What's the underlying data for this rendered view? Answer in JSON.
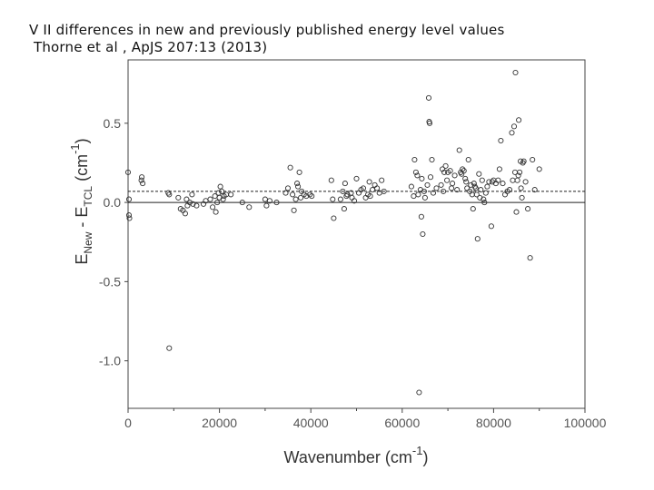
{
  "title_lines": [
    "V II differences in new and previously published energy level values",
    " Thorne et al , ApJS 207:13 (2013)"
  ],
  "chart_data": {
    "type": "scatter",
    "xlabel": "Wavenumber (cm-1)",
    "ylabel": "E_New - E_TCL (cm-1)",
    "xlim": [
      0,
      100000
    ],
    "ylim": [
      -1.3,
      0.9
    ],
    "xticks": [
      0,
      20000,
      40000,
      60000,
      80000,
      100000
    ],
    "yticks": [
      0.5,
      0.0,
      -0.5,
      -1.0
    ],
    "ytick_labels": [
      "0.5",
      "0.0",
      "-0.5",
      "-1.0"
    ],
    "reference_lines": [
      {
        "y": 0.0,
        "style": "solid"
      },
      {
        "y": 0.07,
        "style": "dashed"
      }
    ],
    "marker": "open-circle",
    "points": [
      [
        0,
        0.19
      ],
      [
        200,
        0.02
      ],
      [
        200,
        -0.08
      ],
      [
        300,
        -0.1
      ],
      [
        2900,
        0.14
      ],
      [
        3000,
        0.16
      ],
      [
        3200,
        0.12
      ],
      [
        8800,
        0.06
      ],
      [
        9000,
        0.05
      ],
      [
        9000,
        -0.92
      ],
      [
        11000,
        0.03
      ],
      [
        11500,
        -0.04
      ],
      [
        12000,
        -0.05
      ],
      [
        12500,
        -0.07
      ],
      [
        12800,
        0.02
      ],
      [
        13000,
        -0.02
      ],
      [
        13500,
        0.0
      ],
      [
        14000,
        0.05
      ],
      [
        14200,
        -0.01
      ],
      [
        15000,
        -0.02
      ],
      [
        16500,
        -0.01
      ],
      [
        17000,
        0.01
      ],
      [
        18000,
        0.02
      ],
      [
        18500,
        -0.03
      ],
      [
        19000,
        0.04
      ],
      [
        19200,
        -0.06
      ],
      [
        19500,
        0.0
      ],
      [
        19800,
        0.06
      ],
      [
        20000,
        0.03
      ],
      [
        20200,
        0.1
      ],
      [
        20500,
        0.07
      ],
      [
        20800,
        0.02
      ],
      [
        21000,
        0.04
      ],
      [
        21500,
        0.05
      ],
      [
        22500,
        0.05
      ],
      [
        25000,
        0.0
      ],
      [
        26500,
        -0.03
      ],
      [
        30000,
        0.02
      ],
      [
        30300,
        -0.02
      ],
      [
        31000,
        0.01
      ],
      [
        32500,
        0.0
      ],
      [
        34500,
        0.06
      ],
      [
        35000,
        0.09
      ],
      [
        35500,
        0.22
      ],
      [
        36000,
        0.05
      ],
      [
        36300,
        -0.05
      ],
      [
        36700,
        0.02
      ],
      [
        37000,
        0.12
      ],
      [
        37200,
        0.1
      ],
      [
        37500,
        0.19
      ],
      [
        37800,
        0.03
      ],
      [
        38000,
        0.07
      ],
      [
        38500,
        0.05
      ],
      [
        39000,
        0.04
      ],
      [
        39800,
        0.05
      ],
      [
        40200,
        0.04
      ],
      [
        44500,
        0.14
      ],
      [
        44800,
        0.02
      ],
      [
        45000,
        -0.1
      ],
      [
        46500,
        0.02
      ],
      [
        47000,
        0.07
      ],
      [
        47300,
        -0.04
      ],
      [
        47500,
        0.12
      ],
      [
        47800,
        0.04
      ],
      [
        48000,
        0.05
      ],
      [
        48800,
        0.06
      ],
      [
        49000,
        0.03
      ],
      [
        49500,
        0.01
      ],
      [
        50000,
        0.15
      ],
      [
        50500,
        0.06
      ],
      [
        51000,
        0.08
      ],
      [
        51500,
        0.09
      ],
      [
        52000,
        0.03
      ],
      [
        52500,
        0.05
      ],
      [
        52800,
        0.13
      ],
      [
        53000,
        0.04
      ],
      [
        53500,
        0.08
      ],
      [
        54000,
        0.11
      ],
      [
        54500,
        0.09
      ],
      [
        55000,
        0.06
      ],
      [
        55500,
        0.14
      ],
      [
        56000,
        0.07
      ],
      [
        62000,
        0.1
      ],
      [
        62500,
        0.04
      ],
      [
        62700,
        0.27
      ],
      [
        63000,
        0.19
      ],
      [
        63300,
        0.17
      ],
      [
        63500,
        0.05
      ],
      [
        63700,
        -1.2
      ],
      [
        64000,
        0.08
      ],
      [
        64200,
        -0.09
      ],
      [
        64300,
        0.15
      ],
      [
        64500,
        -0.2
      ],
      [
        64800,
        0.07
      ],
      [
        65000,
        0.03
      ],
      [
        65500,
        0.11
      ],
      [
        65800,
        0.66
      ],
      [
        65900,
        0.51
      ],
      [
        66000,
        0.5
      ],
      [
        66200,
        0.16
      ],
      [
        66500,
        0.27
      ],
      [
        66800,
        0.06
      ],
      [
        67500,
        0.09
      ],
      [
        68500,
        0.11
      ],
      [
        68800,
        0.21
      ],
      [
        69000,
        0.07
      ],
      [
        69200,
        0.19
      ],
      [
        69500,
        0.23
      ],
      [
        69800,
        0.14
      ],
      [
        70000,
        0.19
      ],
      [
        70500,
        0.2
      ],
      [
        70800,
        0.09
      ],
      [
        71000,
        0.12
      ],
      [
        71500,
        0.17
      ],
      [
        72000,
        0.08
      ],
      [
        72500,
        0.33
      ],
      [
        72800,
        0.19
      ],
      [
        73000,
        0.18
      ],
      [
        73200,
        0.21
      ],
      [
        73500,
        0.2
      ],
      [
        73800,
        0.15
      ],
      [
        74000,
        0.13
      ],
      [
        74200,
        0.09
      ],
      [
        74500,
        0.27
      ],
      [
        74800,
        0.07
      ],
      [
        75000,
        0.11
      ],
      [
        75300,
        0.05
      ],
      [
        75500,
        -0.04
      ],
      [
        75700,
        0.12
      ],
      [
        75900,
        0.1
      ],
      [
        76100,
        0.09
      ],
      [
        76300,
        0.05
      ],
      [
        76500,
        -0.23
      ],
      [
        76800,
        0.18
      ],
      [
        77000,
        0.03
      ],
      [
        77200,
        0.08
      ],
      [
        77500,
        0.14
      ],
      [
        77800,
        0.02
      ],
      [
        78000,
        0.0
      ],
      [
        78300,
        0.06
      ],
      [
        78600,
        0.1
      ],
      [
        79000,
        0.13
      ],
      [
        79500,
        -0.15
      ],
      [
        79700,
        0.13
      ],
      [
        80000,
        0.14
      ],
      [
        80500,
        0.12
      ],
      [
        81000,
        0.14
      ],
      [
        81300,
        0.21
      ],
      [
        81600,
        0.39
      ],
      [
        82000,
        0.12
      ],
      [
        82500,
        0.05
      ],
      [
        83000,
        0.07
      ],
      [
        83500,
        0.08
      ],
      [
        84000,
        0.44
      ],
      [
        84200,
        0.14
      ],
      [
        84500,
        0.48
      ],
      [
        84700,
        0.19
      ],
      [
        84800,
        0.82
      ],
      [
        85000,
        -0.06
      ],
      [
        85200,
        0.14
      ],
      [
        85400,
        0.17
      ],
      [
        85500,
        0.52
      ],
      [
        85700,
        0.19
      ],
      [
        85900,
        0.26
      ],
      [
        86000,
        0.09
      ],
      [
        86200,
        0.03
      ],
      [
        86400,
        0.25
      ],
      [
        86600,
        0.26
      ],
      [
        87000,
        0.13
      ],
      [
        87500,
        -0.04
      ],
      [
        88000,
        -0.35
      ],
      [
        88500,
        0.27
      ],
      [
        89000,
        0.08
      ],
      [
        90000,
        0.21
      ]
    ]
  }
}
